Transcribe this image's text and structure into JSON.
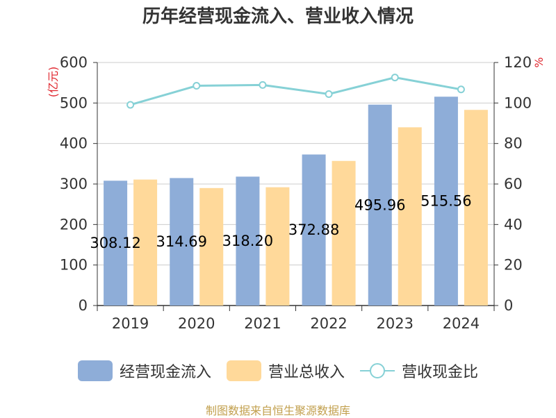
{
  "title": "历年经营现金流入、营业收入情况",
  "source_note": "制图数据来自恒生聚源数据库",
  "legend": {
    "items": [
      {
        "label": "经营现金流入",
        "color": "#8EADD8"
      },
      {
        "label": "营业总收入",
        "color": "#FFD99A"
      },
      {
        "label": "营收现金比",
        "color": "#86D1D6"
      }
    ]
  },
  "chart_data": {
    "type": "bar",
    "title": "历年经营现金流入、营业收入情况",
    "categories": [
      "2019",
      "2020",
      "2021",
      "2022",
      "2023",
      "2024"
    ],
    "y_left": {
      "unit": "(亿元)",
      "range": [
        0,
        600
      ],
      "ticks": [
        0,
        100,
        200,
        300,
        400,
        500,
        600
      ]
    },
    "y_right": {
      "unit": "%",
      "range": [
        0,
        120
      ],
      "ticks": [
        0,
        20,
        40,
        60,
        80,
        100,
        120
      ]
    },
    "grid": true,
    "legend_position": "bottom",
    "series": [
      {
        "name": "经营现金流入",
        "kind": "bar",
        "axis": "left",
        "color": "#8EADD8",
        "values": [
          308.12,
          314.69,
          318.2,
          372.88,
          495.96,
          515.56
        ],
        "labels": [
          "308.12",
          "314.69",
          "318.20",
          "372.88",
          "495.96",
          "515.56"
        ]
      },
      {
        "name": "营业总收入",
        "kind": "bar",
        "axis": "left",
        "color": "#FFD99A",
        "values": [
          311,
          290,
          292,
          357,
          440,
          483
        ]
      },
      {
        "name": "营收现金比",
        "kind": "line",
        "axis": "right",
        "color": "#86D1D6",
        "values": [
          99.1,
          108.5,
          108.9,
          104.4,
          112.6,
          106.7
        ]
      }
    ]
  }
}
